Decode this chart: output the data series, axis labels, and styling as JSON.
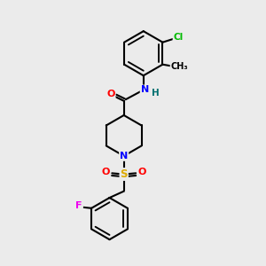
{
  "bg_color": "#ebebeb",
  "bond_color": "#000000",
  "bond_width": 1.5,
  "atom_colors": {
    "N": "#0000ff",
    "O": "#ff0000",
    "S": "#ddaa00",
    "Cl": "#00bb00",
    "F": "#ee00ee",
    "C": "#000000",
    "H": "#007070"
  },
  "figsize": [
    3.0,
    3.0
  ],
  "dpi": 100,
  "xlim": [
    0,
    10
  ],
  "ylim": [
    0,
    10
  ]
}
